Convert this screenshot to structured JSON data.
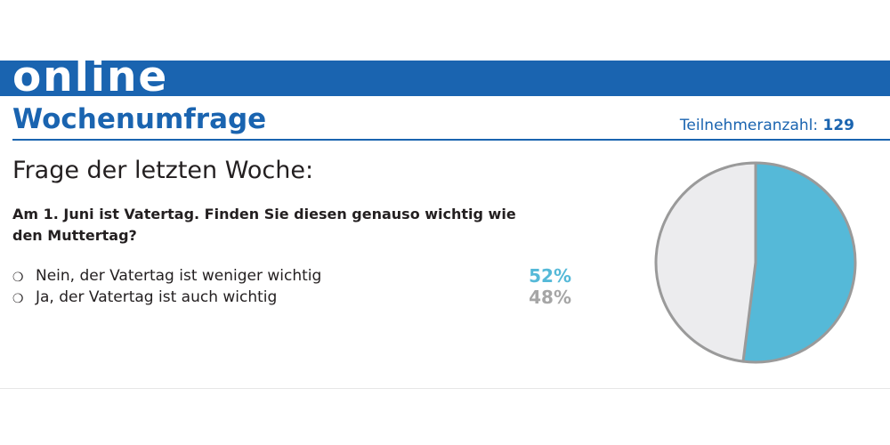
{
  "header": {
    "brand": "online",
    "section_title": "Wochenumfrage",
    "participants_label": "Teilnehmeranzahl:",
    "participants_count": "129"
  },
  "survey": {
    "heading": "Frage der letzten Woche:",
    "question": "Am 1. Juni ist Vatertag. Finden Sie diesen genauso wichtig wie den Muttertag?",
    "answers": [
      {
        "label": "Nein, der Vatertag ist weniger wichtig",
        "percent_text": "52%",
        "color": "#55b9d8"
      },
      {
        "label": "Ja, der Vatertag ist auch wichtig",
        "percent_text": "48%",
        "color": "#a6a6a6"
      }
    ]
  },
  "chart_data": {
    "type": "pie",
    "categories": [
      "Nein, der Vatertag ist weniger wichtig",
      "Ja, der Vatertag ist auch wichtig"
    ],
    "values": [
      52,
      48
    ],
    "unit": "%",
    "colors": [
      "#55b9d8",
      "#ececee"
    ],
    "outline_color": "#9a9a9a"
  }
}
